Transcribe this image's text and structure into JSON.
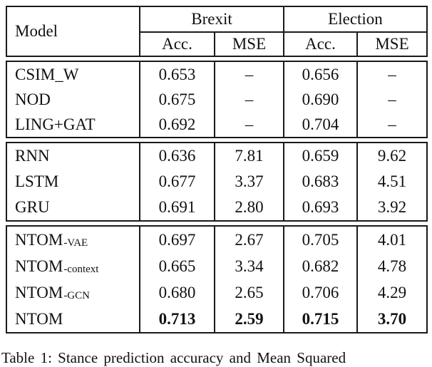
{
  "table": {
    "header": {
      "model_label": "Model",
      "groups": [
        {
          "label": "Brexit"
        },
        {
          "label": "Election"
        }
      ],
      "sub_headers": [
        "Acc.",
        "MSE",
        "Acc.",
        "MSE"
      ]
    },
    "sections": [
      {
        "rows": [
          {
            "model_base": "CSIM_W",
            "model_sub": "",
            "bold": false,
            "values": [
              "0.653",
              "–",
              "0.656",
              "–"
            ]
          },
          {
            "model_base": "NOD",
            "model_sub": "",
            "bold": false,
            "values": [
              "0.675",
              "–",
              "0.690",
              "–"
            ]
          },
          {
            "model_base": "LING+GAT",
            "model_sub": "",
            "bold": false,
            "values": [
              "0.692",
              "–",
              "0.704",
              "–"
            ]
          }
        ]
      },
      {
        "rows": [
          {
            "model_base": "RNN",
            "model_sub": "",
            "bold": false,
            "values": [
              "0.636",
              "7.81",
              "0.659",
              "9.62"
            ]
          },
          {
            "model_base": "LSTM",
            "model_sub": "",
            "bold": false,
            "values": [
              "0.677",
              "3.37",
              "0.683",
              "4.51"
            ]
          },
          {
            "model_base": "GRU",
            "model_sub": "",
            "bold": false,
            "values": [
              "0.691",
              "2.80",
              "0.693",
              "3.92"
            ]
          }
        ]
      },
      {
        "rows": [
          {
            "model_base": "NTOM",
            "model_sub": "-VAE",
            "bold": false,
            "values": [
              "0.697",
              "2.67",
              "0.705",
              "4.01"
            ]
          },
          {
            "model_base": "NTOM",
            "model_sub": "-context",
            "bold": false,
            "values": [
              "0.665",
              "3.34",
              "0.682",
              "4.78"
            ]
          },
          {
            "model_base": "NTOM",
            "model_sub": "-GCN",
            "bold": false,
            "values": [
              "0.680",
              "2.65",
              "0.706",
              "4.29"
            ]
          },
          {
            "model_base": "NTOM",
            "model_sub": "",
            "bold": true,
            "values": [
              "0.713",
              "2.59",
              "0.715",
              "3.70"
            ]
          }
        ]
      }
    ]
  },
  "caption": "Table 1: Stance prediction accuracy and Mean Squared"
}
